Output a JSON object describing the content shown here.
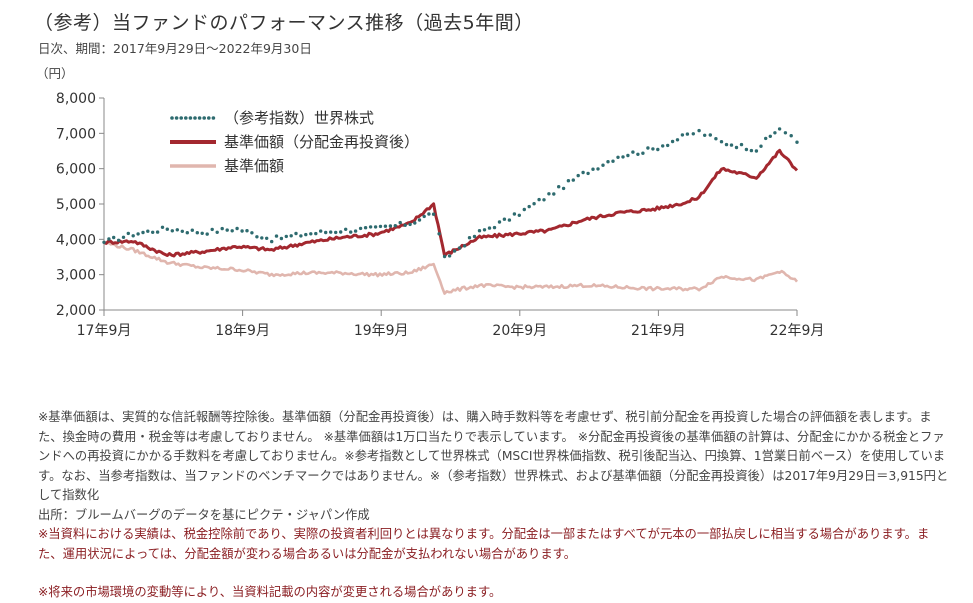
{
  "header": {
    "title": "（参考）当ファンドのパフォーマンス推移（過去5年間）",
    "subtitle": "日次、期間：2017年9月29日～2022年9月30日"
  },
  "chart_data": {
    "type": "line",
    "y_unit": "（円）",
    "ylim": [
      2000,
      8000
    ],
    "y_ticks": [
      "2,000",
      "3,000",
      "4,000",
      "5,000",
      "6,000",
      "7,000",
      "8,000"
    ],
    "x_ticks": [
      "17年9月",
      "18年9月",
      "19年9月",
      "20年9月",
      "21年9月",
      "22年9月"
    ],
    "legend_position": "top-left",
    "x": [
      "2017-09",
      "2017-12",
      "2018-03",
      "2018-06",
      "2018-09",
      "2018-12",
      "2019-03",
      "2019-06",
      "2019-09",
      "2019-12",
      "2020-02",
      "2020-03",
      "2020-06",
      "2020-09",
      "2020-12",
      "2021-03",
      "2021-06",
      "2021-09",
      "2021-12",
      "2022-01",
      "2022-03",
      "2022-06",
      "2022-08",
      "2022-09"
    ],
    "series": [
      {
        "name": "（参考指数）世界株式",
        "color": "#2e6b6f",
        "style": "dotted",
        "values": [
          3915,
          4150,
          4300,
          4200,
          4300,
          4000,
          4150,
          4250,
          4300,
          4450,
          4750,
          3450,
          4200,
          4650,
          5250,
          5850,
          6350,
          6550,
          6950,
          7050,
          6750,
          6550,
          7150,
          6750
        ]
      },
      {
        "name": "基準価額（分配金再投資後）",
        "color": "#a3282f",
        "style": "solid",
        "values": [
          3915,
          3950,
          3550,
          3650,
          3800,
          3700,
          3900,
          4050,
          4150,
          4450,
          5000,
          3550,
          4050,
          4150,
          4250,
          4550,
          4750,
          4850,
          5050,
          5200,
          6000,
          5750,
          6500,
          5950
        ]
      },
      {
        "name": "基準価額",
        "color": "#e0b6ae",
        "style": "solid",
        "values": [
          3915,
          3700,
          3350,
          3200,
          3150,
          3000,
          3050,
          3050,
          3000,
          3050,
          3300,
          2500,
          2700,
          2650,
          2650,
          2700,
          2650,
          2600,
          2600,
          2600,
          2950,
          2850,
          3100,
          2800
        ]
      }
    ]
  },
  "notes": {
    "note_1": "※基準価額は、実質的な信託報酬等控除後。基準価額（分配金再投資後）は、購入時手数料等を考慮せず、税引前分配金を再投資した場合の評価額を表します。また、換金時の費用・税金等は考慮しておりません。 ※基準価額は1万口当たりで表示しています。 ※分配金再投資後の基準価額の計算は、分配金にかかる税金とファンドへの再投資にかかる手数料を考慮しておりません。※参考指数として世界株式（MSCI世界株価指数、税引後配当込、円換算、1営業日前ベース）を使用しています。なお、当参考指数は、当ファンドのベンチマークではありません。※（参考指数）世界株式、および基準価額（分配金再投資後）は2017年9月29日＝3,915円として指数化",
    "source": "出所：ブルームバーグのデータを基にピクテ・ジャパン作成",
    "warning_1": "※当資料における実績は、税金控除前であり、実際の投資者利回りとは異なります。分配金は一部またはすべてが元本の一部払戻しに相当する場合があります。また、運用状況によっては、分配金額が変わる場合あるいは分配金が支払われない場合があります。",
    "warning_2": "※将来の市場環境の変動等により、当資料記載の内容が変更される場合があります。"
  }
}
